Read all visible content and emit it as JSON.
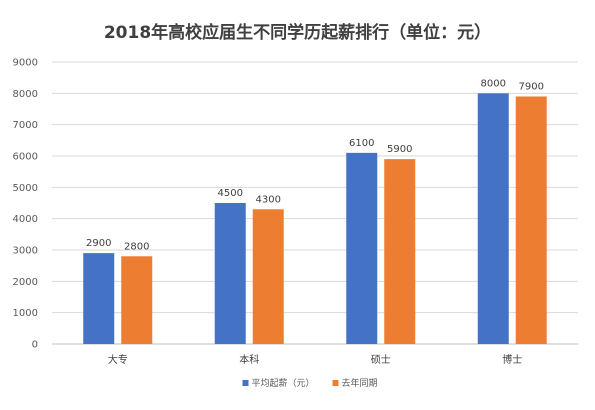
{
  "chart_data": {
    "type": "bar",
    "title": "2018年高校应届生不同学历起薪排行（单位：元）",
    "categories": [
      "大专",
      "本科",
      "硕士",
      "博士"
    ],
    "series": [
      {
        "name": "平均起薪（元）",
        "color": "#4472C4",
        "values": [
          2900,
          4500,
          6100,
          8000
        ]
      },
      {
        "name": "去年同期",
        "color": "#ED7D31",
        "values": [
          2800,
          4300,
          5900,
          7900
        ]
      }
    ],
    "yticks": [
      0,
      1000,
      2000,
      3000,
      4000,
      5000,
      6000,
      7000,
      8000,
      9000
    ],
    "ylim": [
      0,
      9000
    ],
    "grid": true,
    "legend": "bottom"
  }
}
